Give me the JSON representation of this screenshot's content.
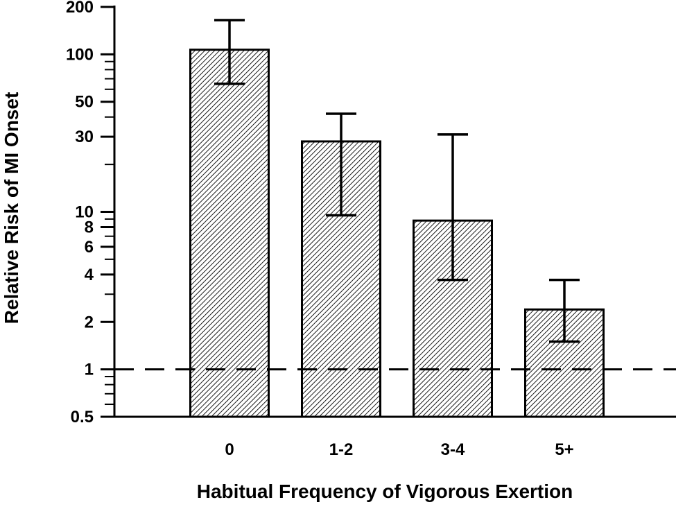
{
  "chart_data": {
    "type": "bar",
    "title": "",
    "xlabel": "Habitual Frequency of Vigorous Exertion",
    "ylabel": "Relative Risk of MI Onset",
    "y_scale": "log",
    "ylim": [
      0.5,
      200
    ],
    "y_tick_labels": [
      {
        "value": 0.5,
        "label": "0.5"
      },
      {
        "value": 1,
        "label": "1"
      },
      {
        "value": 2,
        "label": "2"
      },
      {
        "value": 4,
        "label": "4"
      },
      {
        "value": 6,
        "label": "6"
      },
      {
        "value": 8,
        "label": "8"
      },
      {
        "value": 10,
        "label": "10"
      },
      {
        "value": 30,
        "label": "30"
      },
      {
        "value": 50,
        "label": "50"
      },
      {
        "value": 100,
        "label": "100"
      },
      {
        "value": 200,
        "label": "200"
      }
    ],
    "y_minor_ticks": [
      0.6,
      0.7,
      0.8,
      0.9,
      3,
      5,
      7,
      9,
      20,
      40,
      60,
      70,
      80,
      90
    ],
    "categories": [
      "0",
      "1-2",
      "3-4",
      "5+"
    ],
    "values": [
      107,
      28,
      8.8,
      2.4
    ],
    "error_low": [
      65,
      9.5,
      3.7,
      1.5
    ],
    "error_high": [
      165,
      42,
      31,
      3.7
    ],
    "reference_line": {
      "value": 1,
      "style": "dashed"
    },
    "bar_fill": "hatched",
    "grid": false,
    "legend": "none"
  },
  "colors": {
    "background": "#ffffff",
    "axis": "#000000",
    "bar_stroke": "#000000",
    "bar_fill_base": "#ffffff",
    "hatch": "#000000"
  }
}
